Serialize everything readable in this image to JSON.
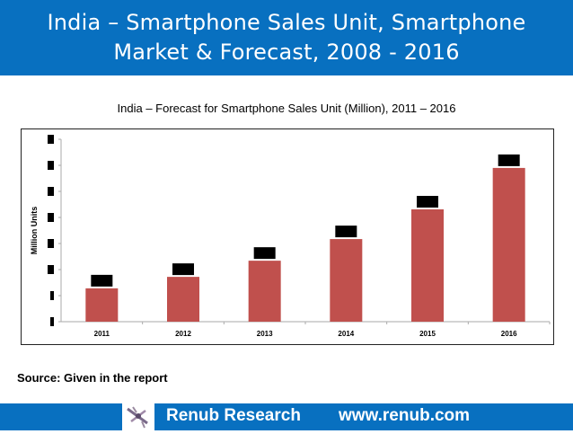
{
  "header": {
    "title_line1": "India – Smartphone Sales Unit, Smartphone",
    "title_line2": "Market & Forecast, 2008 - 2016"
  },
  "source": "Source: Given in the report",
  "footer": {
    "brand": "Renub Research",
    "url": "www.renub.com",
    "logo_icon": "renub-logo-icon"
  },
  "colors": {
    "header_bg": "#0870c0",
    "bar": "#c0504d",
    "redaction": "#000000"
  },
  "chart_data": {
    "type": "bar",
    "title": "India – Forecast for Smartphone Sales Unit (Million), 2011 – 2016",
    "xlabel": "",
    "ylabel": "Million Units",
    "categories": [
      "2011",
      "2012",
      "2013",
      "2014",
      "2015",
      "2016"
    ],
    "value_scale": "relative",
    "value_unit": "y-axis tick steps (tick labels redacted in source image; not million units)",
    "values": [
      1.28,
      1.72,
      2.34,
      3.17,
      4.31,
      5.9
    ],
    "data_labels": [
      "[redacted]",
      "[redacted]",
      "[redacted]",
      "[redacted]",
      "[redacted]",
      "[redacted]"
    ],
    "data_labels_redacted": true,
    "y_tick_count": 8,
    "y_tick_labels": [
      "[redacted]",
      "[redacted]",
      "[redacted]",
      "[redacted]",
      "[redacted]",
      "[redacted]",
      "[redacted]",
      "[redacted]"
    ],
    "y_tick_labels_redacted": true,
    "ylim": [
      0,
      7
    ],
    "grid": false,
    "legend": "none"
  }
}
